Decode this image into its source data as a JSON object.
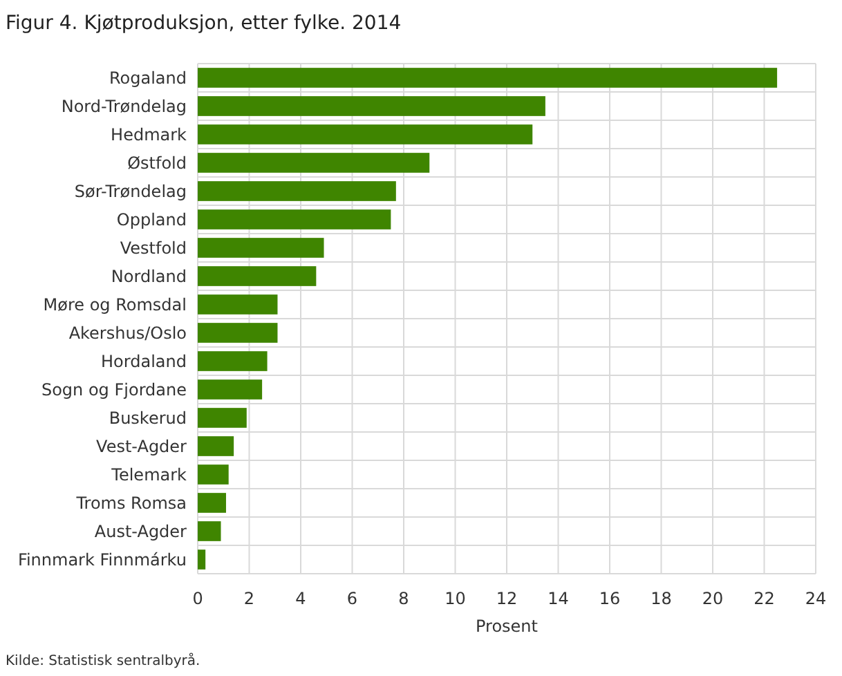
{
  "chart_data": {
    "type": "bar",
    "orientation": "horizontal",
    "title": "Figur 4. Kjøtproduksjon, etter fylke. 2014",
    "xlabel": "Prosent",
    "categories": [
      "Rogaland",
      "Nord-Trøndelag",
      "Hedmark",
      "Østfold",
      "Sør-Trøndelag",
      "Oppland",
      "Vestfold",
      "Nordland",
      "Møre og Romsdal",
      "Akershus/Oslo",
      "Hordaland",
      "Sogn og Fjordane",
      "Buskerud",
      "Vest-Agder",
      "Telemark",
      "Troms Romsa",
      "Aust-Agder",
      "Finnmark Finnmárku"
    ],
    "values": [
      22.5,
      13.5,
      13.0,
      9.0,
      7.7,
      7.5,
      4.9,
      4.6,
      3.1,
      3.1,
      2.7,
      2.5,
      1.9,
      1.4,
      1.2,
      1.1,
      0.9,
      0.3
    ],
    "color": "#3f8500",
    "xlim": [
      0,
      24
    ],
    "xticks": [
      0,
      2,
      4,
      6,
      8,
      10,
      12,
      14,
      16,
      18,
      20,
      22,
      24
    ],
    "grid": true,
    "annotations": [
      "Kilde: Statistisk sentralbyrå."
    ]
  }
}
